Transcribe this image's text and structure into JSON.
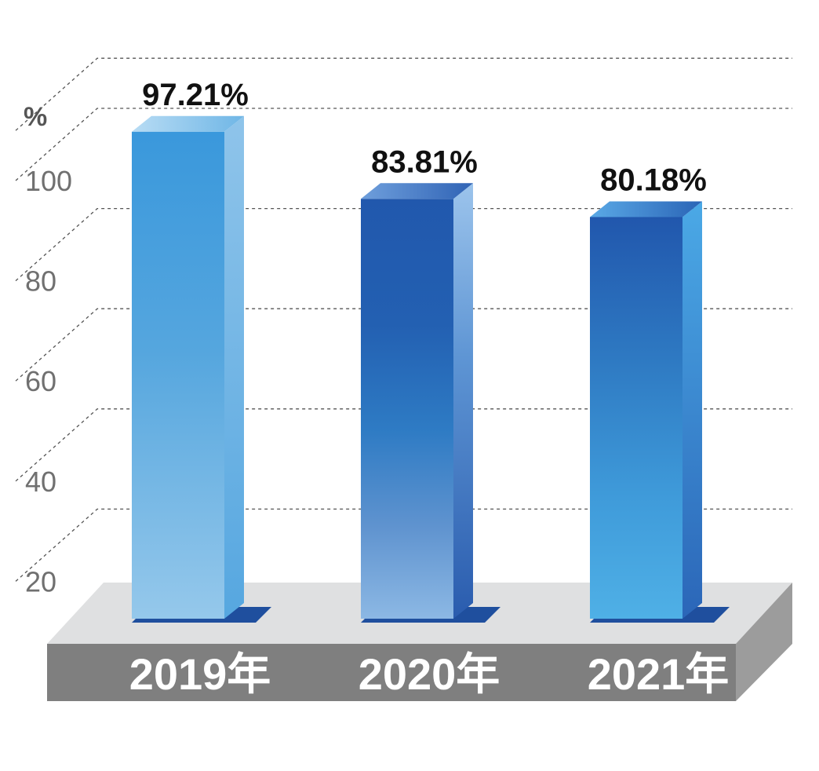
{
  "chart_data": {
    "type": "bar",
    "categories": [
      "2019年",
      "2020年",
      "2021年"
    ],
    "values": [
      97.21,
      83.81,
      80.18
    ],
    "value_labels": [
      "97.21%",
      "83.81%",
      "80.18%"
    ],
    "title": "",
    "xlabel": "",
    "ylabel": "%",
    "yticks": [
      20,
      40,
      60,
      80,
      100
    ],
    "ylim": [
      10,
      106
    ],
    "grid": true,
    "legend": "none",
    "colors": {
      "bar_light": "#8ec3ea",
      "bar_mid": "#3d96d8",
      "bar_dark": "#2157ad",
      "platform_top": "#dfe0e1",
      "platform_front": "#7f7f7f",
      "platform_side": "#9c9c9c"
    }
  }
}
